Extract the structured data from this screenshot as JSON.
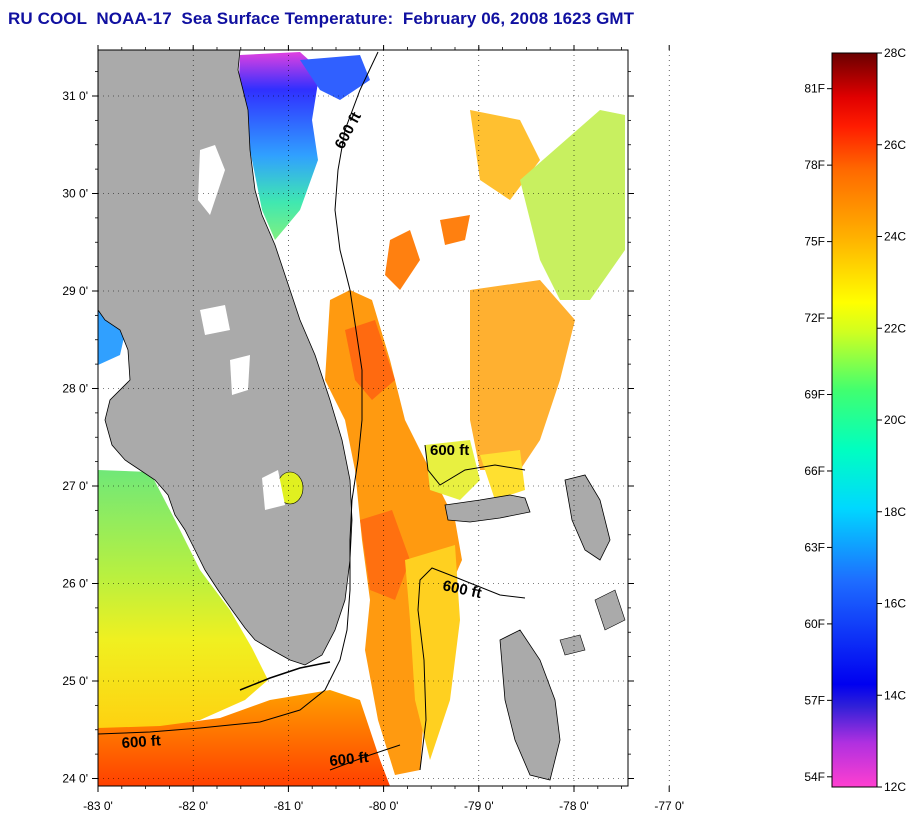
{
  "title": "RU COOL  NOAA-17  Sea Surface Temperature:  February 06, 2008 1623 GMT",
  "axes": {
    "lon_labels": [
      "-83 0'",
      "-82 0'",
      "-81 0'",
      "-80 0'",
      "-79 0'",
      "-78 0'",
      "-77 0'"
    ],
    "lat_labels": [
      "31 0'",
      "30 0'",
      "29 0'",
      "28 0'",
      "27 0'",
      "26 0'",
      "25 0'",
      "24 0'"
    ]
  },
  "contour_labels": [
    "600 ft",
    "600 ft",
    "600 ft",
    "600 ft",
    "600 ft"
  ],
  "colorbar": {
    "celsius_labels": [
      "28C",
      "26C",
      "24C",
      "22C",
      "20C",
      "18C",
      "16C",
      "14C",
      "12C"
    ],
    "fahrenheit_labels": [
      "81F",
      "78F",
      "75F",
      "72F",
      "69F",
      "66F",
      "63F",
      "60F",
      "57F",
      "54F"
    ],
    "colors": [
      "#ff3fd0",
      "#9a2bd8",
      "#1010e0",
      "#1a5cff",
      "#00c0ff",
      "#00ffd0",
      "#40ff80",
      "#c8ff20",
      "#ffff00",
      "#ffc000",
      "#ff8000",
      "#ff2000",
      "#e00000",
      "#700000"
    ]
  },
  "colors": {
    "land": "#aaaaaa",
    "cloud": "#ffffff",
    "title": "#1010a0"
  }
}
